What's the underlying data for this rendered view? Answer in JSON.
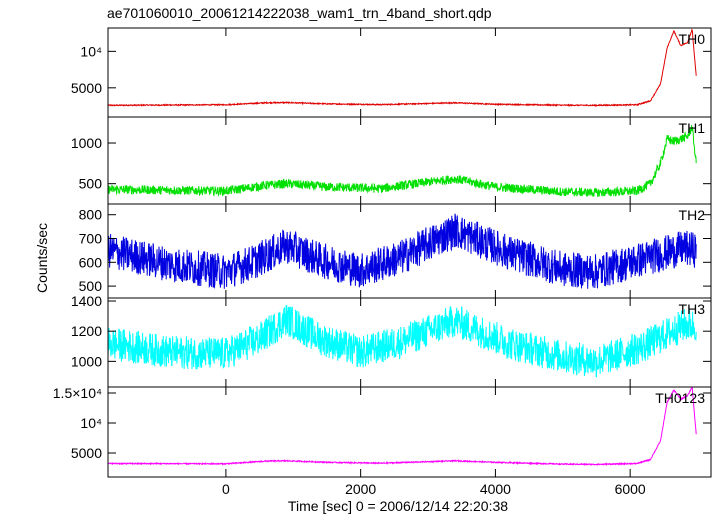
{
  "chart_data": {
    "type": "line",
    "title": "ae701060010_20061214222038_wam1_trn_4band_short.qdp",
    "xlabel": "Time [sec] 0 = 2006/12/14 22:20:38",
    "ylabel": "Counts/sec",
    "xlim": [
      -1750,
      7200
    ],
    "xticks": [
      0,
      2000,
      4000,
      6000
    ],
    "xtick_labels": [
      "0",
      "2000",
      "4000",
      "6000"
    ],
    "grid": false,
    "panels": [
      {
        "name": "TH0",
        "color": "#e00000",
        "ylim": [
          1000,
          13200
        ],
        "yticks": [
          5000,
          10000
        ],
        "ytick_labels": [
          "5000",
          "10⁴"
        ],
        "baseline": [
          [
            -1750,
            2600
          ],
          [
            0,
            2680
          ],
          [
            600,
            2950
          ],
          [
            900,
            2980
          ],
          [
            1500,
            2800
          ],
          [
            2300,
            2700
          ],
          [
            3000,
            2850
          ],
          [
            3400,
            2950
          ],
          [
            4000,
            2750
          ],
          [
            5000,
            2620
          ],
          [
            5500,
            2600
          ],
          [
            6100,
            2680
          ],
          [
            6300,
            3200
          ],
          [
            6450,
            5500
          ],
          [
            6550,
            10500
          ],
          [
            6650,
            12800
          ],
          [
            6750,
            10800
          ],
          [
            6850,
            11200
          ],
          [
            6920,
            13000
          ],
          [
            7000,
            4500
          ]
        ],
        "noise": 70
      },
      {
        "name": "TH1",
        "color": "#00e000",
        "ylim": [
          250,
          1320
        ],
        "yticks": [
          500,
          1000
        ],
        "ytick_labels": [
          "500",
          "1000"
        ],
        "baseline": [
          [
            -1750,
            430
          ],
          [
            0,
            410
          ],
          [
            600,
            480
          ],
          [
            900,
            500
          ],
          [
            1500,
            460
          ],
          [
            2300,
            440
          ],
          [
            3000,
            520
          ],
          [
            3400,
            560
          ],
          [
            4000,
            460
          ],
          [
            5000,
            400
          ],
          [
            5500,
            390
          ],
          [
            6100,
            410
          ],
          [
            6300,
            500
          ],
          [
            6450,
            750
          ],
          [
            6550,
            1050
          ],
          [
            6650,
            1020
          ],
          [
            6750,
            1050
          ],
          [
            6850,
            1080
          ],
          [
            6920,
            1200
          ],
          [
            7000,
            600
          ]
        ],
        "noise": 55
      },
      {
        "name": "TH2",
        "color": "#0000e0",
        "ylim": [
          450,
          845
        ],
        "yticks": [
          500,
          600,
          700,
          800
        ],
        "ytick_labels": [
          "500",
          "600",
          "700",
          "800"
        ],
        "baseline": [
          [
            -1750,
            650
          ],
          [
            -800,
            590
          ],
          [
            0,
            560
          ],
          [
            400,
            600
          ],
          [
            900,
            670
          ],
          [
            1400,
            610
          ],
          [
            2000,
            565
          ],
          [
            2600,
            620
          ],
          [
            3400,
            735
          ],
          [
            4200,
            640
          ],
          [
            5000,
            570
          ],
          [
            5500,
            560
          ],
          [
            6200,
            615
          ],
          [
            6800,
            660
          ],
          [
            7000,
            650
          ]
        ],
        "noise": 75
      },
      {
        "name": "TH3",
        "color": "#00ffff",
        "ylim": [
          830,
          1420
        ],
        "yticks": [
          1000,
          1200,
          1400
        ],
        "ytick_labels": [
          "1000",
          "1200",
          "1400"
        ],
        "baseline": [
          [
            -1750,
            1120
          ],
          [
            -800,
            1060
          ],
          [
            0,
            1050
          ],
          [
            500,
            1150
          ],
          [
            900,
            1280
          ],
          [
            1400,
            1150
          ],
          [
            2000,
            1060
          ],
          [
            2600,
            1130
          ],
          [
            3400,
            1270
          ],
          [
            4200,
            1120
          ],
          [
            5000,
            1030
          ],
          [
            5500,
            1000
          ],
          [
            6200,
            1100
          ],
          [
            6800,
            1240
          ],
          [
            7000,
            1240
          ]
        ],
        "noise": 110
      },
      {
        "name": "TH0123",
        "color": "#ff00ff",
        "ylim": [
          1000,
          16000
        ],
        "yticks": [
          5000,
          10000,
          15000
        ],
        "ytick_labels": [
          "5000",
          "10⁴",
          "1.5×10⁴"
        ],
        "baseline": [
          [
            -1750,
            3250
          ],
          [
            0,
            3200
          ],
          [
            600,
            3650
          ],
          [
            900,
            3700
          ],
          [
            1500,
            3450
          ],
          [
            2300,
            3300
          ],
          [
            3000,
            3550
          ],
          [
            3400,
            3700
          ],
          [
            4000,
            3450
          ],
          [
            5000,
            3150
          ],
          [
            5500,
            3100
          ],
          [
            6100,
            3250
          ],
          [
            6300,
            3900
          ],
          [
            6450,
            7000
          ],
          [
            6550,
            13500
          ],
          [
            6650,
            15500
          ],
          [
            6750,
            14000
          ],
          [
            6850,
            14500
          ],
          [
            6920,
            16000
          ],
          [
            7000,
            5500
          ]
        ],
        "noise": 90
      }
    ]
  }
}
